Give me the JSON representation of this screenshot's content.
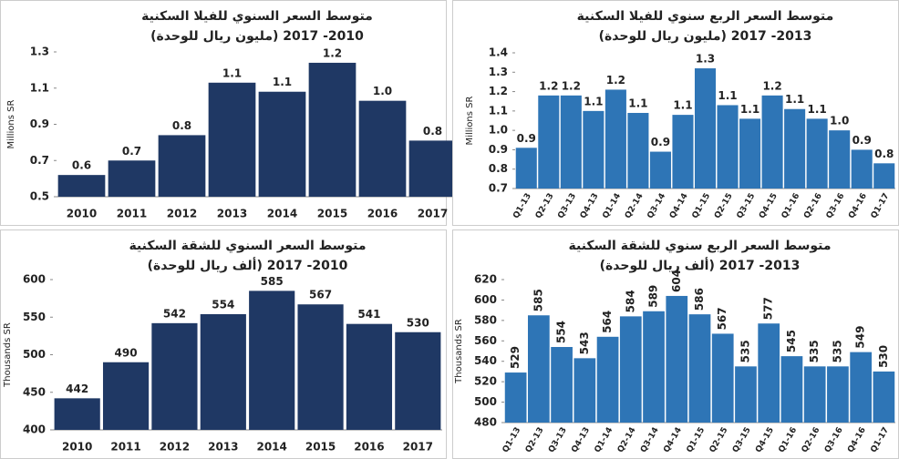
{
  "chart_data": [
    {
      "type": "bar",
      "title": "متوسط السعر السنوي للفيلا السكنية",
      "subtitle": "(مليون ريال للوحدة) 2010- 2017",
      "y_label": "Millions SR",
      "categories": [
        "2010",
        "2011",
        "2012",
        "2013",
        "2014",
        "2015",
        "2016",
        "2017"
      ],
      "values": [
        0.62,
        0.7,
        0.84,
        1.13,
        1.08,
        1.24,
        1.03,
        0.81
      ],
      "value_labels": [
        "0.6",
        "0.7",
        "0.8",
        "1.1",
        "1.1",
        "1.2",
        "1.0",
        "0.8"
      ],
      "color": "#1f3864",
      "ylim": [
        0.5,
        1.3
      ],
      "yticks": [
        0.5,
        0.7,
        0.9,
        1.1,
        1.3
      ]
    },
    {
      "type": "bar",
      "title": "متوسط السعر الربع سنوي للفيلا السكنية",
      "subtitle": "(مليون ريال للوحدة) 2013- 2017",
      "y_label": "Millions SR",
      "categories": [
        "Q1-13",
        "Q2-13",
        "Q3-13",
        "Q4-13",
        "Q1-14",
        "Q2-14",
        "Q3-14",
        "Q4-14",
        "Q1-15",
        "Q2-15",
        "Q3-15",
        "Q4-15",
        "Q1-16",
        "Q2-16",
        "Q3-16",
        "Q4-16",
        "Q1-17"
      ],
      "values": [
        0.91,
        1.18,
        1.18,
        1.1,
        1.21,
        1.09,
        0.89,
        1.08,
        1.32,
        1.13,
        1.06,
        1.18,
        1.11,
        1.06,
        1.0,
        0.9,
        0.83
      ],
      "value_labels": [
        "0.9",
        "1.2",
        "1.2",
        "1.1",
        "1.2",
        "1.1",
        "0.9",
        "1.1",
        "1.3",
        "1.1",
        "1.1",
        "1.2",
        "1.1",
        "1.1",
        "1.0",
        "0.9",
        "0.8"
      ],
      "color": "#2e75b6",
      "ylim": [
        0.7,
        1.4
      ],
      "yticks": [
        0.7,
        0.8,
        0.9,
        {
          "value": 1,
          "label": "1.0"
        },
        1.1,
        1.2,
        1.3,
        1.4
      ]
    },
    {
      "type": "bar",
      "title": "متوسط السعر السنوي للشقة السكنية",
      "subtitle": "(ألف ريال للوحدة) 2010- 2017",
      "y_label": "Thousands SR",
      "categories": [
        "2010",
        "2011",
        "2012",
        "2013",
        "2014",
        "2015",
        "2016",
        "2017"
      ],
      "values": [
        442,
        490,
        542,
        554,
        585,
        567,
        541,
        530
      ],
      "color": "#1f3864",
      "ylim": [
        400,
        600
      ],
      "yticks": [
        400,
        450,
        500,
        550,
        600
      ]
    },
    {
      "type": "bar",
      "title": "متوسط السعر الربع سنوي للشقة السكنية",
      "subtitle": "(ألف ريال للوحدة) 2013- 2017",
      "y_label": "Thousands SR",
      "categories": [
        "Q1-13",
        "Q2-13",
        "Q3-13",
        "Q4-13",
        "Q1-14",
        "Q2-14",
        "Q3-14",
        "Q4-14",
        "Q1-15",
        "Q2-15",
        "Q3-15",
        "Q4-15",
        "Q1-16",
        "Q2-16",
        "Q3-16",
        "Q4-16",
        "Q1-17"
      ],
      "values": [
        529,
        585,
        554,
        543,
        564,
        584,
        589,
        604,
        586,
        567,
        535,
        577,
        545,
        535,
        535,
        549,
        530
      ],
      "color": "#2e75b6",
      "ylim": [
        480,
        620
      ],
      "yticks": [
        480,
        500,
        520,
        540,
        560,
        580,
        600,
        620
      ]
    }
  ]
}
